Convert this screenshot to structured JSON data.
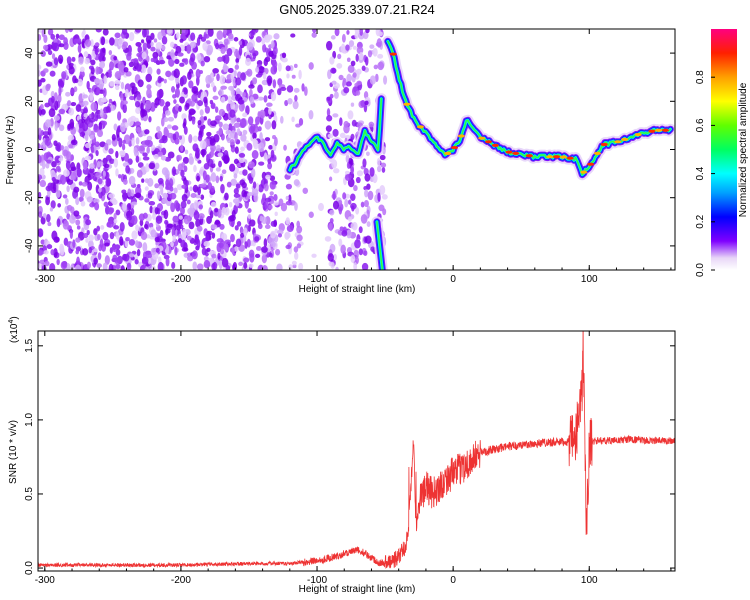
{
  "title": "GN05.2025.339.07.21.R24",
  "chart_data": [
    {
      "type": "heatmap",
      "title": "GN05.2025.339.07.21.R24",
      "xlabel": "Height of straight line (km)",
      "ylabel": "Frequency (Hz)",
      "xlim": [
        -305,
        163
      ],
      "ylim": [
        -50,
        50
      ],
      "xticks": [
        -300,
        -200,
        -100,
        0,
        100
      ],
      "yticks": [
        -40,
        -20,
        0,
        20,
        40
      ],
      "colorbar": {
        "label": "Normalized spectral amplitude",
        "range": [
          0.0,
          1.0
        ],
        "ticks": [
          0.0,
          0.2,
          0.4,
          0.6,
          0.8
        ],
        "tick_labels": [
          "0.0",
          "0.2",
          "0.4",
          "0.6",
          "0.8"
        ]
      },
      "ridge": {
        "x": [
          -120,
          -115,
          -110,
          -105,
          -100,
          -95,
          -90,
          -85,
          -80,
          -75,
          -70,
          -65,
          -60,
          -55,
          -50,
          -45,
          -40,
          -35,
          -30,
          -25,
          -20,
          -15,
          -10,
          -5,
          0,
          5,
          10,
          20,
          30,
          40,
          50,
          60,
          70,
          80,
          90,
          95,
          100,
          110,
          120,
          130,
          140,
          150,
          160
        ],
        "y": [
          -8,
          -5,
          0,
          3,
          5,
          2,
          -3,
          3,
          0,
          1,
          -3,
          8,
          3,
          0,
          47,
          42,
          30,
          20,
          14,
          10,
          7,
          3,
          0,
          -2,
          0,
          4,
          12,
          5,
          2,
          -1,
          -2,
          -3,
          -3,
          -3,
          -4,
          -10,
          -7,
          2,
          3,
          5,
          7,
          8,
          8
        ]
      },
      "noise_region_x": [
        -305,
        -50
      ]
    },
    {
      "type": "line",
      "title": "",
      "xlabel": "Height of straight line (km)",
      "ylabel": "SNR (10 * v/v)",
      "multiplier_label": "(x10",
      "multiplier_exp": "4",
      "multiplier_close": ")",
      "xlim": [
        -305,
        163
      ],
      "ylim": [
        -0.02,
        1.6
      ],
      "xticks": [
        -300,
        -200,
        -100,
        0,
        100
      ],
      "yticks": [
        0.0,
        0.5,
        1.0,
        1.5
      ],
      "ytick_labels": [
        "0.0",
        "0.5",
        "1.0",
        "1.5"
      ],
      "color": "#ee3333",
      "series": [
        {
          "name": "SNR",
          "x": [
            -305,
            -250,
            -200,
            -150,
            -120,
            -110,
            -100,
            -95,
            -90,
            -85,
            -80,
            -75,
            -70,
            -65,
            -60,
            -55,
            -50,
            -45,
            -40,
            -35,
            -33,
            -31,
            -29,
            -28,
            -27,
            -25,
            -20,
            -15,
            -10,
            -5,
            0,
            10,
            20,
            30,
            40,
            50,
            60,
            70,
            80,
            90,
            93,
            96,
            98,
            100,
            105,
            110,
            120,
            130,
            140,
            150,
            163
          ],
          "values": [
            0.02,
            0.02,
            0.02,
            0.03,
            0.03,
            0.04,
            0.05,
            0.06,
            0.07,
            0.08,
            0.1,
            0.11,
            0.12,
            0.1,
            0.07,
            0.04,
            0.03,
            0.04,
            0.08,
            0.15,
            0.25,
            0.55,
            0.88,
            0.45,
            0.3,
            0.45,
            0.55,
            0.5,
            0.55,
            0.6,
            0.64,
            0.7,
            0.78,
            0.8,
            0.82,
            0.83,
            0.84,
            0.85,
            0.85,
            0.86,
            1.1,
            1.3,
            0.2,
            0.84,
            0.86,
            0.86,
            0.86,
            0.87,
            0.86,
            0.86,
            0.86
          ]
        }
      ]
    }
  ]
}
